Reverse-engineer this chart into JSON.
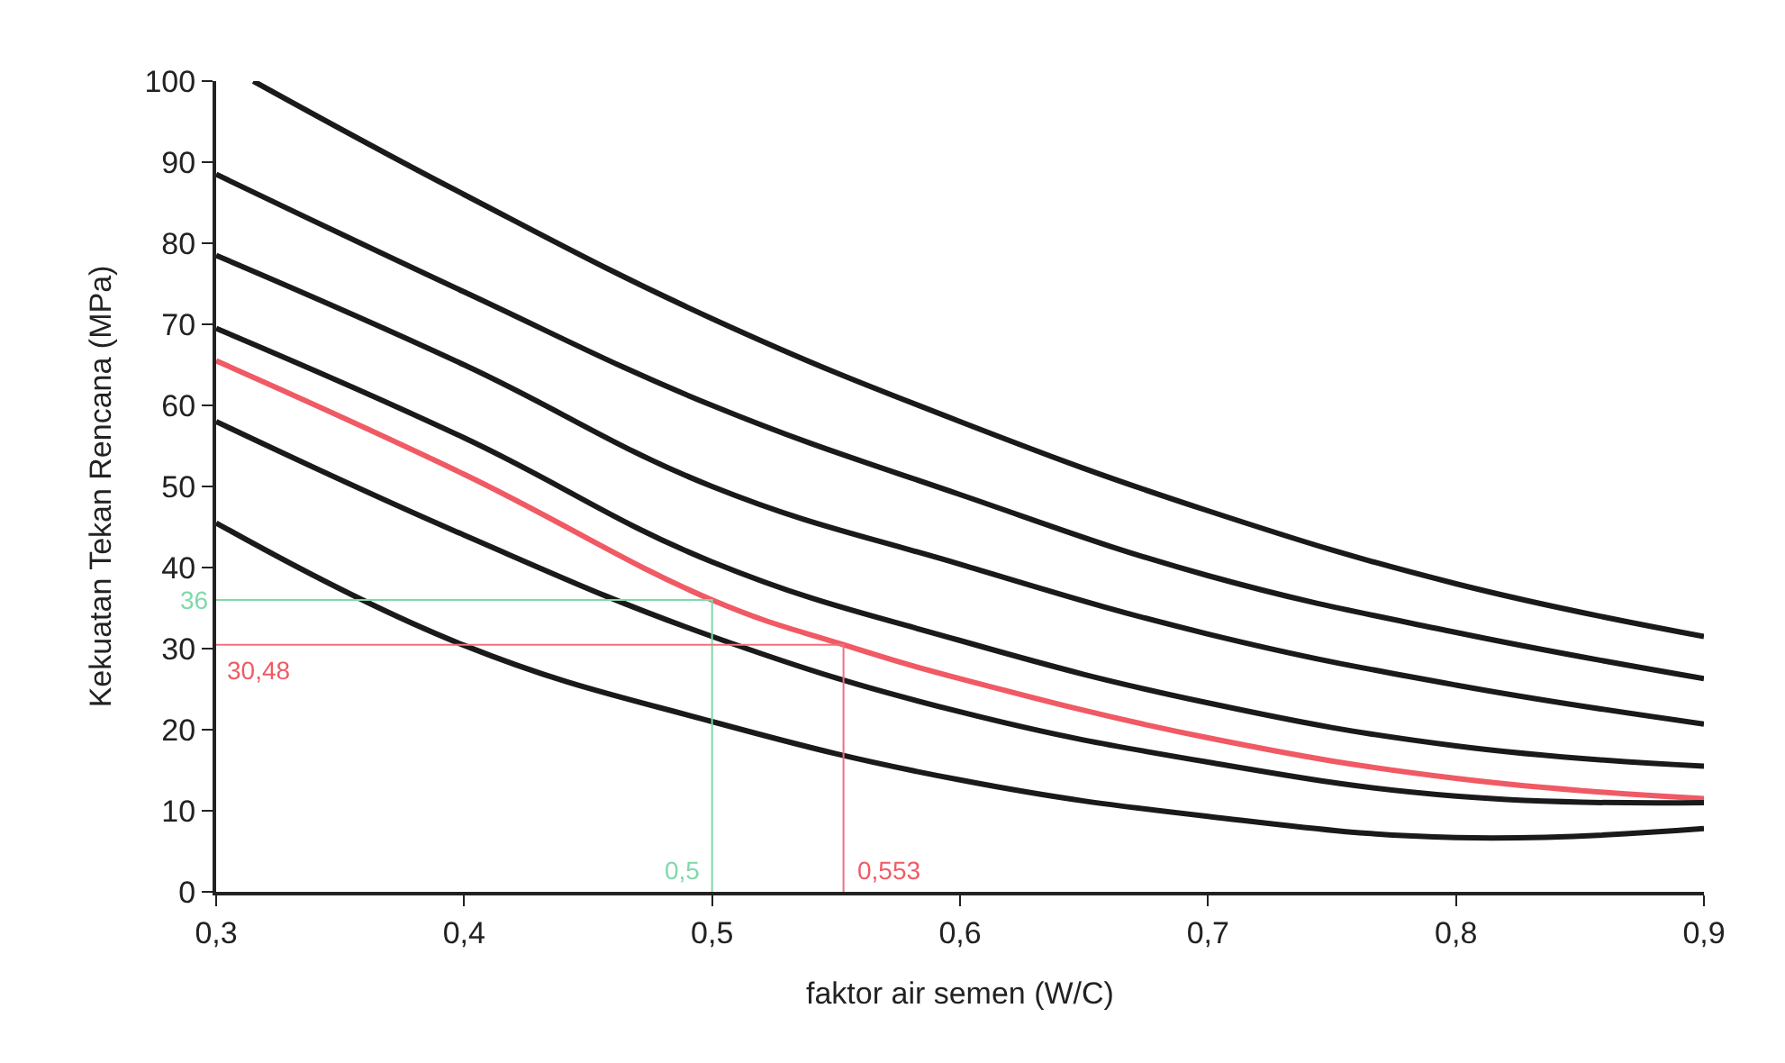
{
  "chart_data": {
    "type": "line",
    "xlabel": "faktor air semen (W/C)",
    "ylabel": "Kekuatan Tekan Rencana (MPa)",
    "xlim": [
      0.3,
      0.9
    ],
    "ylim": [
      0,
      100
    ],
    "xticks": [
      {
        "value": 0.3,
        "label": "0,3"
      },
      {
        "value": 0.4,
        "label": "0,4"
      },
      {
        "value": 0.5,
        "label": "0,5"
      },
      {
        "value": 0.6,
        "label": "0,6"
      },
      {
        "value": 0.7,
        "label": "0,7"
      },
      {
        "value": 0.8,
        "label": "0,8"
      },
      {
        "value": 0.9,
        "label": "0,9"
      }
    ],
    "yticks": [
      0,
      10,
      20,
      30,
      40,
      50,
      60,
      70,
      80,
      90,
      100
    ],
    "grid": false,
    "marker": "none",
    "line_style": "solid",
    "x": [
      0.3,
      0.4,
      0.5,
      0.6,
      0.7,
      0.8,
      0.9
    ],
    "series": [
      {
        "color": "#1a1a1a",
        "x": [
          0.315,
          0.4,
          0.5,
          0.6,
          0.7,
          0.8,
          0.9
        ],
        "values": [
          100,
          86,
          70.7,
          58,
          47,
          38,
          31.5
        ]
      },
      {
        "color": "#1a1a1a",
        "values": [
          88.5,
          74,
          60,
          49,
          39,
          32,
          26.3
        ]
      },
      {
        "color": "#1a1a1a",
        "values": [
          78.5,
          65,
          50,
          40.4,
          31.8,
          25.5,
          20.7
        ]
      },
      {
        "color": "#1a1a1a",
        "values": [
          69.5,
          56,
          40.7,
          31,
          23.3,
          18,
          15.5
        ]
      },
      {
        "color": "#f05a64",
        "x": [
          0.3,
          0.4,
          0.5,
          0.553,
          0.6,
          0.7,
          0.8,
          0.9
        ],
        "values": [
          65.5,
          51.5,
          36,
          30.48,
          26.3,
          19,
          14,
          11.5
        ]
      },
      {
        "color": "#1a1a1a",
        "values": [
          58,
          44,
          31.5,
          22.2,
          16,
          11.8,
          11
        ]
      },
      {
        "color": "#1a1a1a",
        "values": [
          45.5,
          30.4,
          21,
          13.8,
          9.3,
          6.7,
          7.8
        ]
      },
      {
        "color": "#7fd9a8",
        "x": [
          0.3,
          0.5,
          0.5
        ],
        "values": [
          36,
          36,
          0
        ]
      },
      {
        "color": "#f07080",
        "x": [
          0.3,
          0.553,
          0.553
        ],
        "values": [
          30.48,
          30.48,
          0
        ]
      }
    ],
    "annotations": [
      {
        "text": "36",
        "x": 0.3,
        "y": 36
      },
      {
        "text": "30,48",
        "x": 0.3,
        "y": 30.48
      },
      {
        "text": "0,5",
        "x": 0.5,
        "y": 0
      },
      {
        "text": "0,553",
        "x": 0.553,
        "y": 0
      }
    ]
  }
}
